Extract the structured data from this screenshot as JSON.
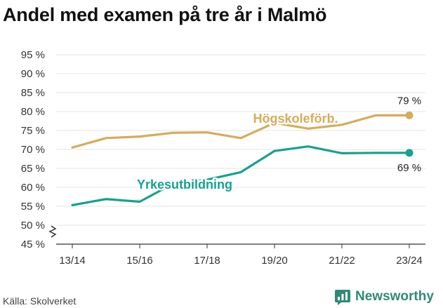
{
  "title": "Andel med examen på tre år i Malmö",
  "source": "Källa: Skolverket",
  "brand": {
    "name": "Newsworthy",
    "icon": "newsworthy-logo-icon",
    "color": "#2f8a77"
  },
  "chart_data": {
    "type": "line",
    "title": "Andel med examen på tre år i Malmö",
    "xlabel": "",
    "ylabel": "",
    "x": [
      "13/14",
      "14/15",
      "15/16",
      "16/17",
      "17/18",
      "18/19",
      "19/20",
      "20/21",
      "21/22",
      "22/23",
      "23/24"
    ],
    "x_tick_labels": [
      "13/14",
      "15/16",
      "17/18",
      "19/20",
      "21/22",
      "23/24"
    ],
    "y_tick_labels": [
      "45 %",
      "50 %",
      "55 %",
      "60 %",
      "65 %",
      "70 %",
      "75 %",
      "80 %",
      "85 %",
      "90 %",
      "95 %"
    ],
    "ylim": [
      45,
      95
    ],
    "y_ticks": [
      45,
      50,
      55,
      60,
      65,
      70,
      75,
      80,
      85,
      90,
      95
    ],
    "y_axis_break": true,
    "grid": "horizontal",
    "legend": "inline labels",
    "series": [
      {
        "name": "Högskoleförb.",
        "color": "#d6ac5b",
        "values": [
          70.5,
          73.0,
          73.4,
          74.4,
          74.5,
          73.0,
          77.0,
          75.5,
          76.5,
          79.0,
          79.0
        ],
        "end_label": "79 %"
      },
      {
        "name": "Yrkesutbildning",
        "color": "#15a290",
        "values": [
          55.3,
          56.9,
          56.2,
          61.0,
          62.0,
          64.0,
          69.6,
          70.8,
          69.0,
          69.1,
          69.1
        ],
        "end_label": "69 %"
      }
    ]
  }
}
